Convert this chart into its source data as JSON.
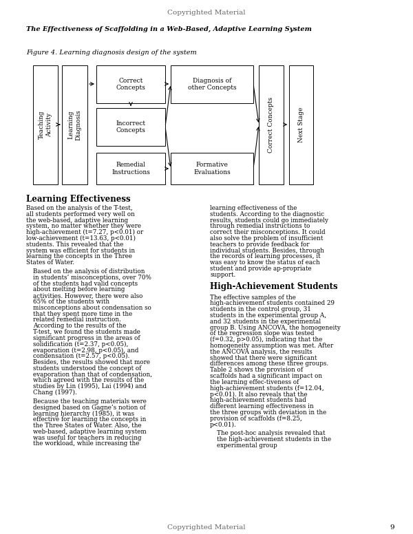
{
  "header_text": "Copyrighted Material",
  "title_italic": "The Effectiveness of Scaffolding in a Web-Based, Adaptive Learning System",
  "figure_caption": "Figure 4. Learning diagnosis design of the system",
  "footer_text": "Copyrighted Material",
  "page_number": "9",
  "section1_heading": "Learning Effectiveness",
  "section2_heading": "High-Achievement Students",
  "col1_para1": "Based on the analysis of the T-test, all students performed very well on the web-based, adaptive learning system, no matter whether they were high-achievement (t=7.27, p<0.01) or low-achievement (t=13.63, p<0.01) students. This revealed that the system was efficient for students in learning the concepts in the Three States of Water.",
  "col1_para2": "Based on the analysis of distribution in students’ misconceptions, over 70% of the students had valid concepts about melting before learning activities. However, there were also 65% of the students with misconceptions about condensation so that they spent more time in the related remedial instruction. According to the results of the T-test, we found the students made significant progress in the areas of solidification (t=2.37, p<0.05), evaporation (t=2.98, p<0.05), and condensation (t=2.57, p<0.05). Besides, the results showed that more students understood the concept of evaporation than that of condensation, which agreed with the results of the studies by Lin (1995), Lai (1994) and Chang (1997).",
  "col1_para3": "Because the teaching materials were designed based on Gagne’s notion of learning hierarchy (1985), it was effective for learning the concepts in the Three States of Water. Also, the web-based, adaptive learning system was useful for teachers in reducing the workload, while increasing the",
  "col2_para1": "learning effectiveness of the students. According to the diagnostic results, students could go immediately through remedial instructions to correct their misconceptions. It could also solve the problem of insufficient teachers to provide feedback for individual students. Besides, through the records of learning processes, it was easy to know the status of each student and provide ap-propriate support.",
  "col2_para2": "The effective samples of the high-achievement students contained 29 students in the control group, 31 students in the experimental group A, and 32 students in the experimental group B. Using ANCOVA, the homogeneity of the regression slope was tested (f=0.32, p>0.05), indicating that the homogeneity assumption was met. After the ANCOVA analysis, the results showed that there were significant differences among these three groups. Table 2 shows the provision of scaffolds had a significant impact on the learning effec-tiveness of high-achievement students (f=12.04, p<0.01). It also reveals that the high-achievement students had different learning effectiveness in the three groups with deviation in the provision of scaffolds (f=8.25, p<0.01).",
  "col2_para3": "The post-hoc analysis revealed that the high-achievement students in the experimental group",
  "background_color": "#ffffff",
  "text_color": "#000000"
}
